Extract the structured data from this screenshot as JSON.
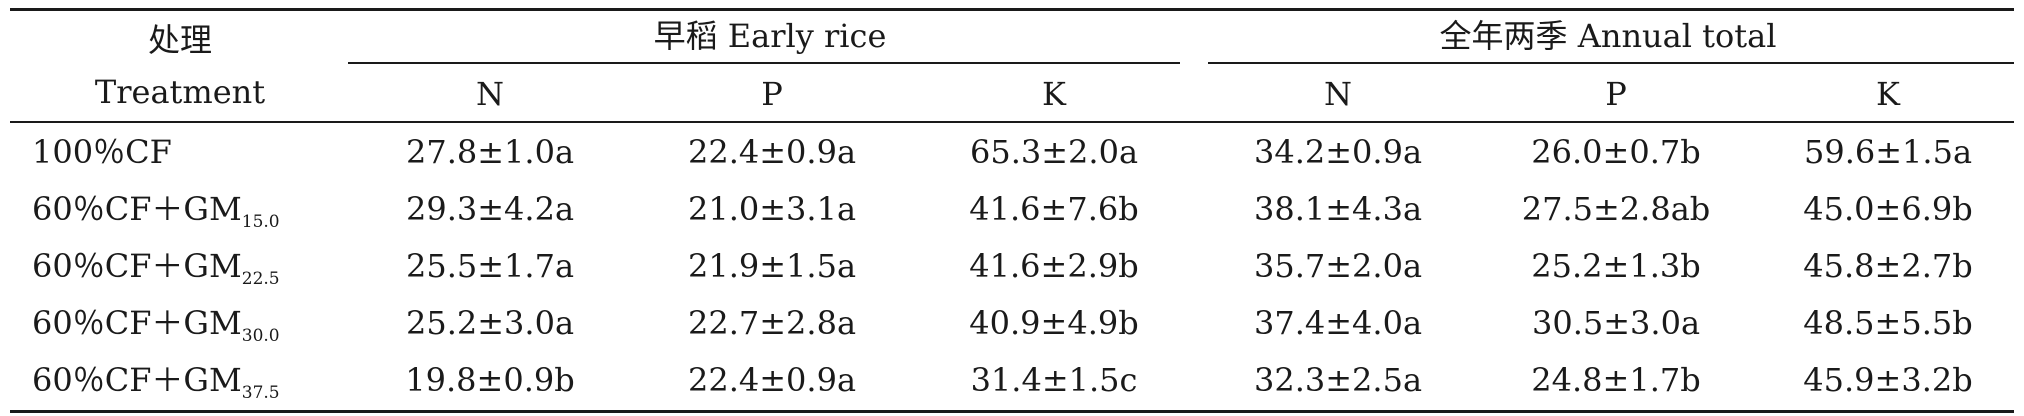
{
  "table": {
    "header": {
      "treatment_zh": "处理",
      "treatment_en": "Treatment",
      "group_early": "早稻 Early rice",
      "group_annual": "全年两季 Annual total",
      "sub": [
        "N",
        "P",
        "K",
        "N",
        "P",
        "K"
      ]
    },
    "rows": [
      {
        "label": "100％CF",
        "label_sub": "",
        "cells": [
          "27.8±1.0a",
          "22.4±0.9a",
          "65.3±2.0a",
          "34.2±0.9a",
          "26.0±0.7b",
          "59.6±1.5a"
        ]
      },
      {
        "label": "60％CF＋GM",
        "label_sub": "15.0",
        "cells": [
          "29.3±4.2a",
          "21.0±3.1a",
          "41.6±7.6b",
          "38.1±4.3a",
          "27.5±2.8ab",
          "45.0±6.9b"
        ]
      },
      {
        "label": "60％CF＋GM",
        "label_sub": "22.5",
        "cells": [
          "25.5±1.7a",
          "21.9±1.5a",
          "41.6±2.9b",
          "35.7±2.0a",
          "25.2±1.3b",
          "45.8±2.7b"
        ]
      },
      {
        "label": "60％CF＋GM",
        "label_sub": "30.0",
        "cells": [
          "25.2±3.0a",
          "22.7±2.8a",
          "40.9±4.9b",
          "37.4±4.0a",
          "30.5±3.0a",
          "48.5±5.5b"
        ]
      },
      {
        "label": "60％CF＋GM",
        "label_sub": "37.5",
        "cells": [
          "19.8±0.9b",
          "22.4±0.9a",
          "31.4±1.5c",
          "32.3±2.5a",
          "24.8±1.7b",
          "45.9±3.2b"
        ]
      }
    ]
  }
}
